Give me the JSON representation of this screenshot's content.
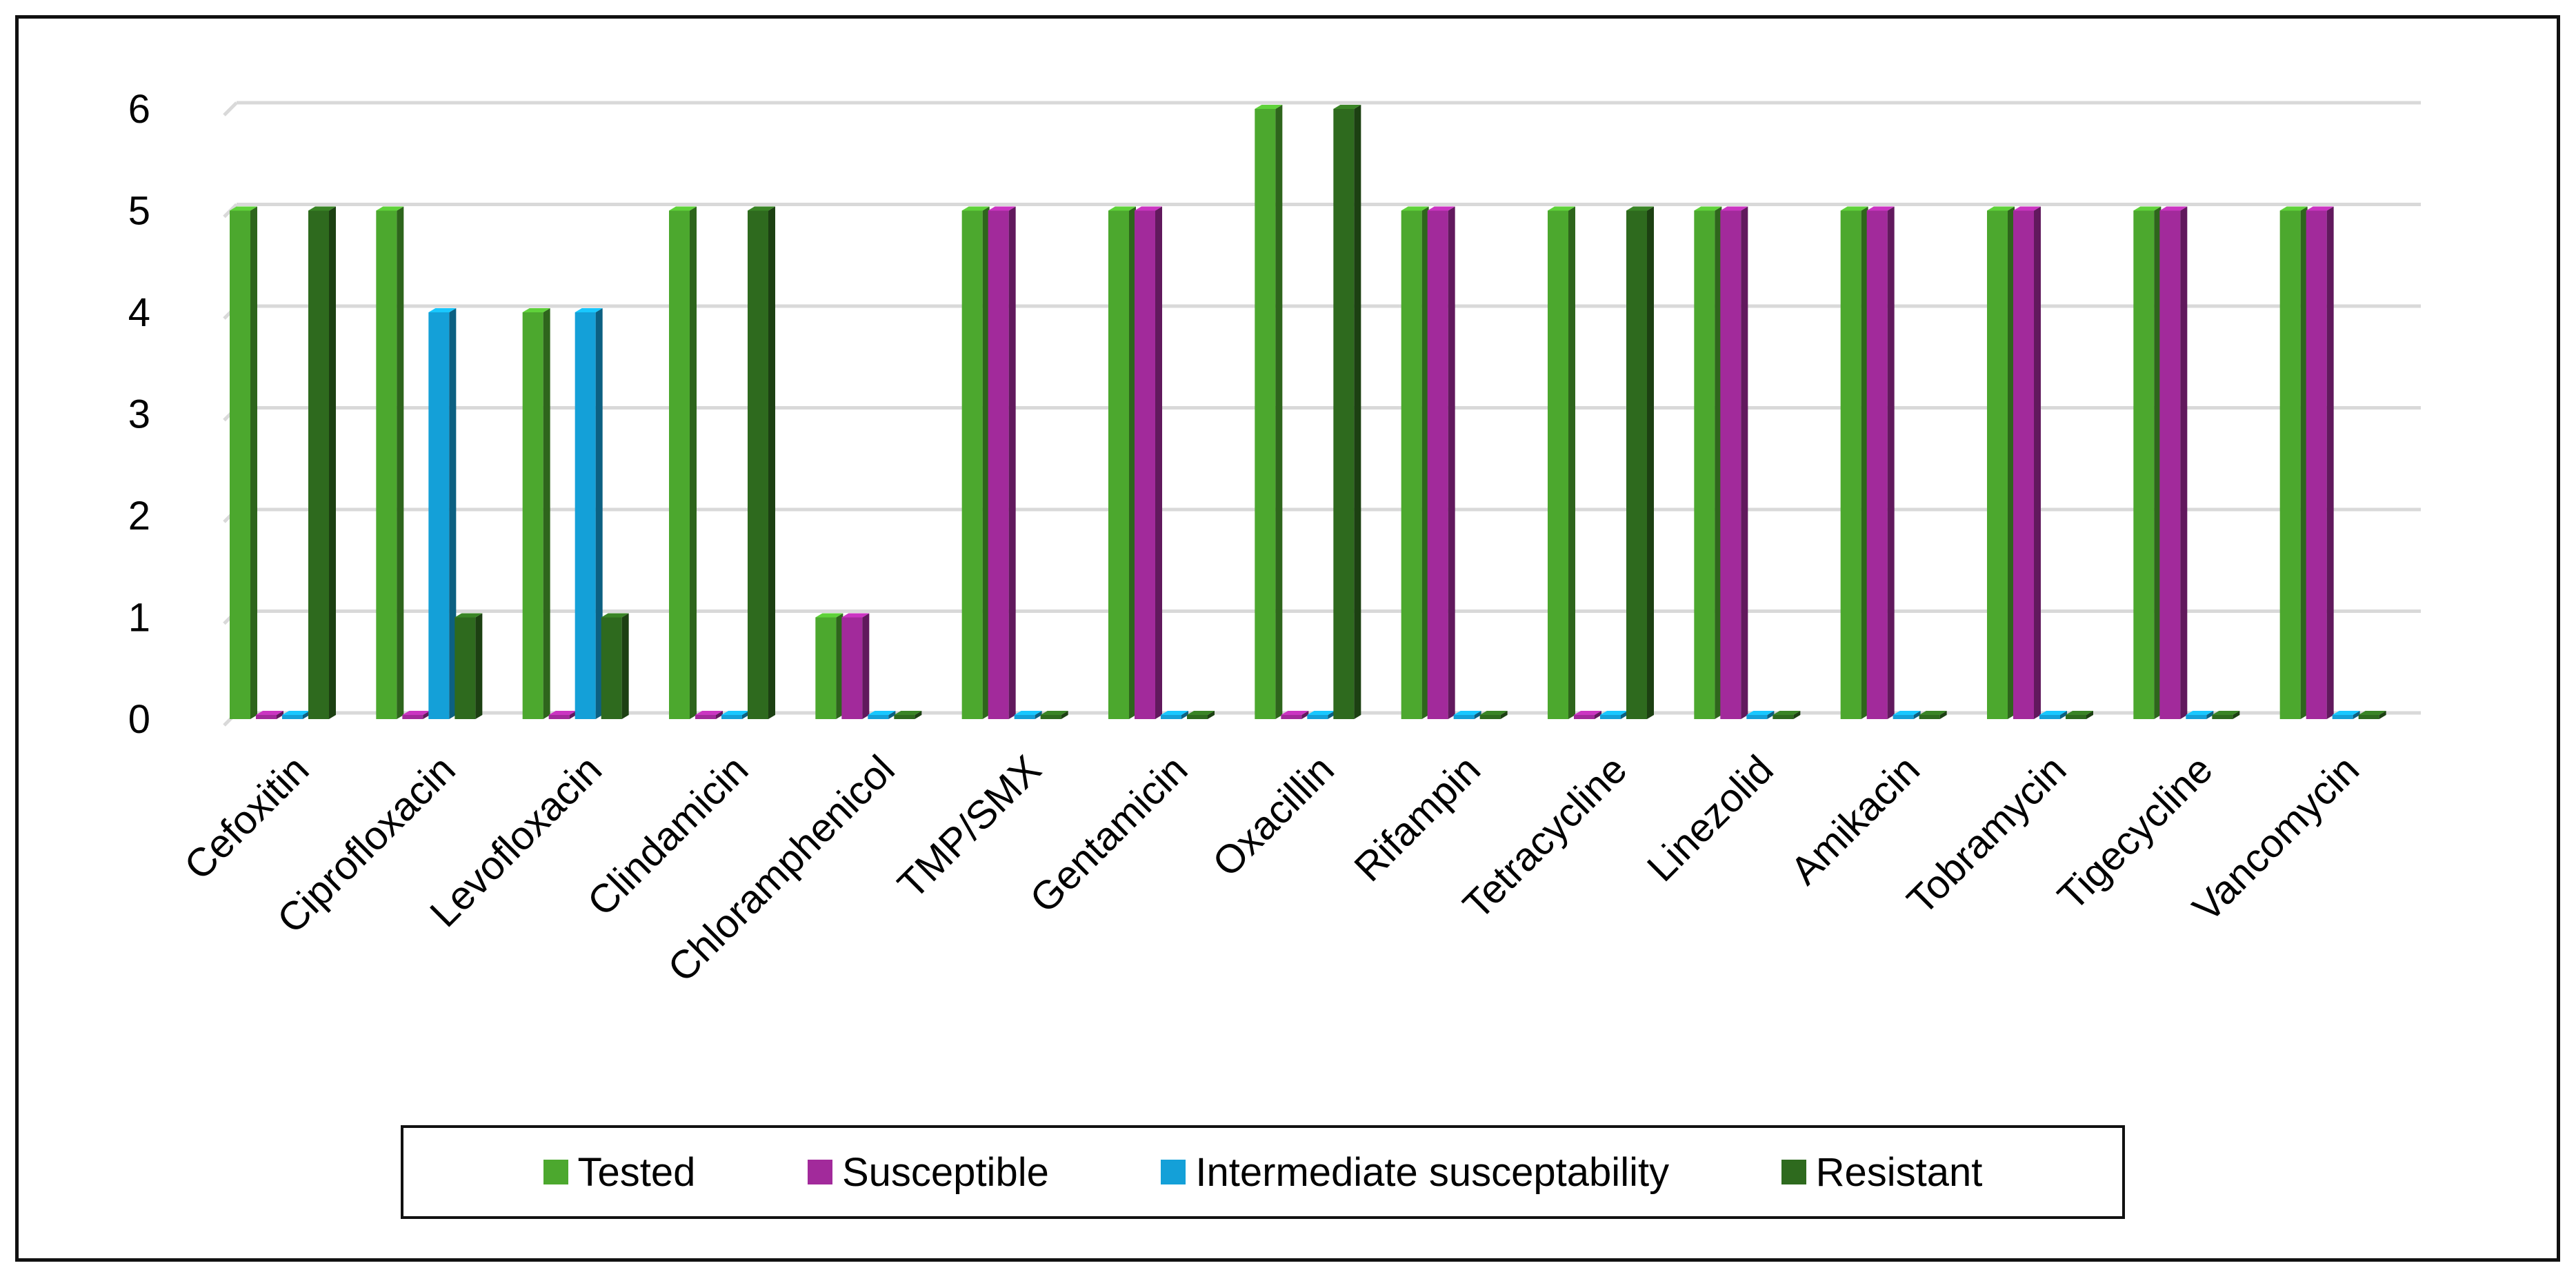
{
  "chart_data": {
    "type": "bar",
    "style": "3d-clustered-column",
    "title": "",
    "xlabel": "",
    "ylabel": "",
    "ylim": [
      0,
      6
    ],
    "yticks": [
      0,
      1,
      2,
      3,
      4,
      5,
      6
    ],
    "grid": true,
    "legend_position": "bottom",
    "categories": [
      "Cefoxitin",
      "Ciprofloxacin",
      "Levofloxacin",
      "Clindamicin",
      "Chloramphenicol",
      "TMP/SMX",
      "Gentamicin",
      "Oxacillin",
      "Rifampin",
      "Tetracycline",
      "Linezolid",
      "Amikacin",
      "Tobramycin",
      "Tigecycline",
      "Vancomycin"
    ],
    "series": [
      {
        "name": "Tested",
        "color": "#4CA82E",
        "values": [
          5,
          5,
          4,
          5,
          1,
          5,
          5,
          6,
          5,
          5,
          5,
          5,
          5,
          5,
          5
        ]
      },
      {
        "name": "Susceptible",
        "color": "#A22A9B",
        "values": [
          0,
          0,
          0,
          0,
          1,
          5,
          5,
          0,
          5,
          0,
          5,
          5,
          5,
          5,
          5
        ]
      },
      {
        "name": "Intermediate susceptability",
        "color": "#14A0D8",
        "values": [
          0,
          4,
          4,
          0,
          0,
          0,
          0,
          0,
          0,
          0,
          0,
          0,
          0,
          0,
          0
        ]
      },
      {
        "name": "Resistant",
        "color": "#2E6A1E",
        "values": [
          5,
          1,
          1,
          5,
          0,
          0,
          0,
          6,
          0,
          5,
          0,
          0,
          0,
          0,
          0
        ]
      }
    ]
  }
}
